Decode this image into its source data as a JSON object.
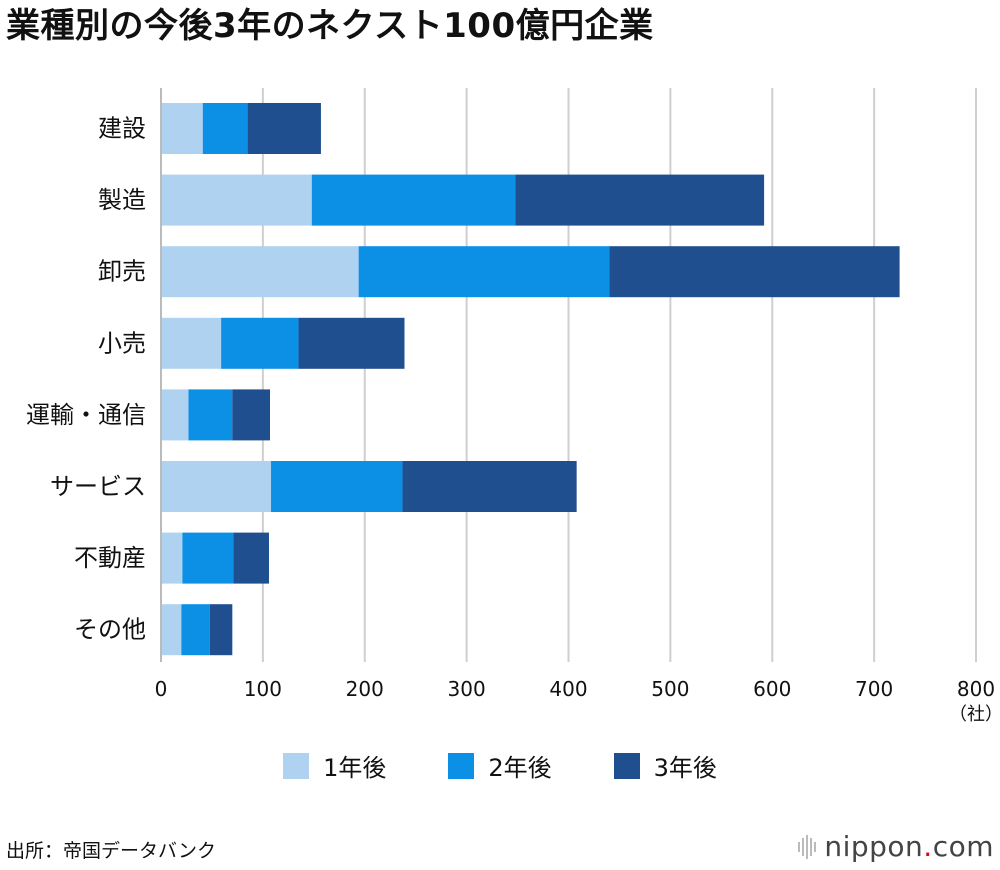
{
  "title": "業種別の今後3年のネクスト100億円企業",
  "chart_data": {
    "type": "bar",
    "orientation": "horizontal",
    "stacked": true,
    "title": "業種別の今後3年のネクスト100億円企業",
    "categories": [
      "建設",
      "製造",
      "卸売",
      "小売",
      "運輸・通信",
      "サービス",
      "不動産",
      "その他"
    ],
    "series": [
      {
        "name": "1年後",
        "color": "#b0d2f1",
        "values": [
          41,
          148,
          194,
          59,
          27,
          108,
          21,
          20
        ]
      },
      {
        "name": "2年後",
        "color": "#0c90e6",
        "values": [
          44,
          200,
          246,
          76,
          43,
          129,
          50,
          28
        ]
      },
      {
        "name": "3年後",
        "color": "#1f4f8f",
        "values": [
          72,
          244,
          285,
          104,
          37,
          171,
          35,
          22
        ]
      }
    ],
    "xlim": [
      0,
      800
    ],
    "xticks": [
      0,
      100,
      200,
      300,
      400,
      500,
      600,
      700,
      800
    ],
    "xunit": "（社）",
    "grid": true,
    "legend": "bottom"
  },
  "source": "出所：帝国データバンク",
  "logo": {
    "text": "nippon",
    "dot": ".",
    "suffix": "com"
  }
}
